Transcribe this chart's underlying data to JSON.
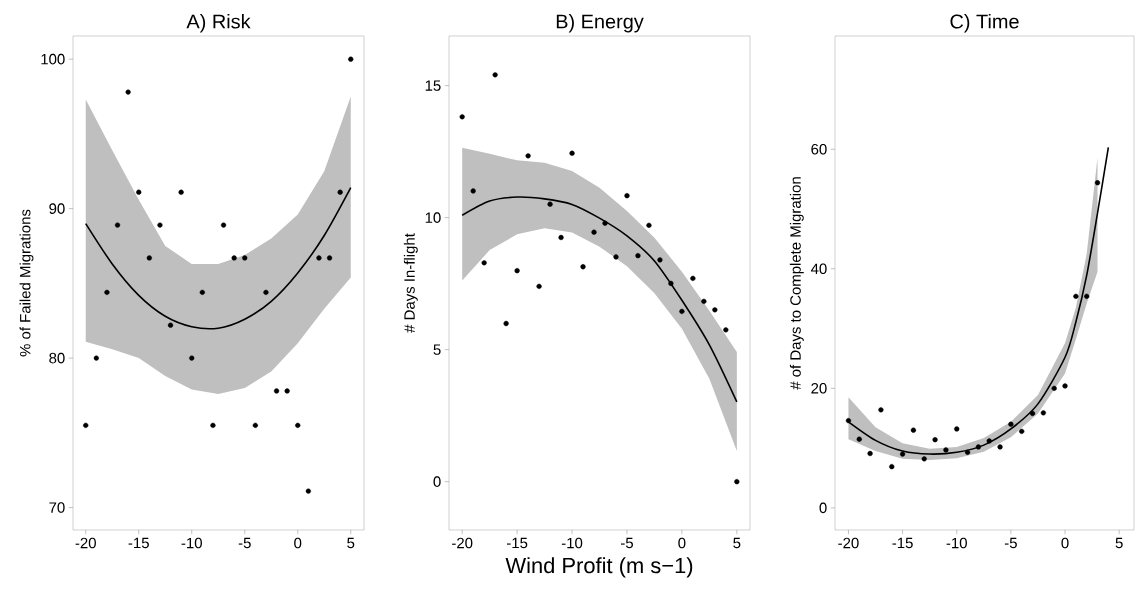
{
  "chart_data": [
    {
      "type": "scatter",
      "title": "A) Risk",
      "ylabel": "% of Failed Migrations",
      "xlim": [
        -21.2,
        6.25
      ],
      "ylim": [
        68.5,
        101.55
      ],
      "xticks": [
        -20,
        -15,
        -10,
        -5,
        0,
        5
      ],
      "yticks": [
        70,
        80,
        90,
        100
      ],
      "grid": false,
      "marker": "circle",
      "series": [
        {
          "color": "#000000",
          "x": [
            -20,
            -19,
            -18,
            -17,
            -16,
            -15,
            -14,
            -13,
            -12,
            -11,
            -10,
            -9,
            -8,
            -7,
            -6,
            -5,
            -4,
            -3,
            -2,
            -1,
            0,
            1,
            2,
            3,
            4,
            5
          ],
          "values": [
            75.5,
            80,
            84.4,
            88.9,
            97.8,
            91.1,
            86.7,
            88.9,
            82.2,
            91.1,
            80,
            84.4,
            75.5,
            88.9,
            86.7,
            86.7,
            75.5,
            84.4,
            77.8,
            77.8,
            75.5,
            71.1,
            86.7,
            86.7,
            91.1,
            100
          ]
        },
        {
          "type": "line",
          "color": "#000000",
          "line_style": "solid",
          "x": [
            -20,
            -17.5,
            -15,
            -12.5,
            -10,
            -7.5,
            -5,
            -2.5,
            0,
            2.5,
            5
          ],
          "marker": "none",
          "values": [
            89.0,
            86.3,
            84.2,
            82.8,
            82.1,
            82.0,
            82.6,
            83.8,
            85.7,
            88.2,
            91.4
          ],
          "upper": [
            97.3,
            93.9,
            90.6,
            87.5,
            86.3,
            86.3,
            86.9,
            88.0,
            89.6,
            92.5,
            97.5
          ],
          "lower": [
            81.1,
            80.6,
            80.0,
            78.8,
            77.9,
            77.6,
            78.0,
            79.1,
            81.0,
            83.3,
            85.4
          ]
        }
      ]
    },
    {
      "type": "scatter",
      "title": "B) Energy",
      "ylabel": "# Days In-flight",
      "xlabel": "Wind Profit (m s−1)",
      "xlim": [
        -21.2,
        6.2
      ],
      "ylim": [
        -1.83,
        16.88
      ],
      "xticks": [
        -20,
        -15,
        -10,
        -5,
        0,
        5
      ],
      "yticks": [
        0,
        5,
        10,
        15
      ],
      "grid": false,
      "marker": "circle",
      "series": [
        {
          "color": "#000000",
          "x": [
            -20,
            -19,
            -18,
            -17,
            -16,
            -15,
            -14,
            -13,
            -12,
            -11,
            -10,
            -9,
            -8,
            -7,
            -6,
            -5,
            -4,
            -3,
            -2,
            -1,
            0,
            1,
            2,
            3,
            4,
            5
          ],
          "values": [
            13.82,
            11.01,
            8.29,
            15.41,
            5.99,
            7.99,
            12.34,
            7.4,
            10.51,
            9.25,
            12.44,
            8.14,
            9.45,
            9.79,
            8.51,
            10.83,
            8.56,
            9.71,
            8.4,
            7.51,
            6.45,
            7.7,
            6.83,
            6.51,
            5.75,
            0
          ]
        },
        {
          "type": "line",
          "color": "#000000",
          "line_style": "solid",
          "x": [
            -20,
            -17.5,
            -15,
            -12.5,
            -10,
            -7.5,
            -5,
            -2.5,
            0,
            2.5,
            5
          ],
          "marker": "none",
          "values": [
            10.09,
            10.63,
            10.78,
            10.71,
            10.5,
            9.98,
            9.31,
            8.36,
            6.87,
            5.18,
            3.02
          ],
          "upper": [
            12.65,
            12.42,
            12.17,
            12.08,
            11.77,
            11.13,
            10.25,
            9.24,
            7.95,
            6.47,
            4.91
          ],
          "lower": [
            7.62,
            8.77,
            9.37,
            9.6,
            9.44,
            8.9,
            8.16,
            7.14,
            5.79,
            3.9,
            1.16
          ]
        }
      ]
    },
    {
      "type": "scatter",
      "title": "C) Time",
      "ylabel": "# of Days to Complete Migration",
      "xlim": [
        -21.24,
        6.37
      ],
      "ylim": [
        -3.7,
        78.95
      ],
      "xticks": [
        -20,
        -15,
        -10,
        -5,
        0,
        5
      ],
      "yticks": [
        0,
        20,
        40,
        60
      ],
      "grid": false,
      "marker": "circle",
      "series": [
        {
          "color": "#000000",
          "x": [
            -20,
            -19,
            -18,
            -17,
            -16,
            -15,
            -14,
            -13,
            -12,
            -11,
            -10,
            -9,
            -8,
            -7,
            -6,
            -5,
            -4,
            -3,
            -2,
            -1,
            0,
            1,
            2,
            3
          ],
          "values": [
            14.6,
            11.5,
            9.1,
            16.4,
            6.9,
            9.0,
            13.0,
            8.2,
            11.4,
            9.7,
            13.2,
            9.3,
            10.2,
            11.2,
            10.2,
            14.0,
            12.8,
            15.8,
            15.9,
            20.0,
            20.4,
            35.4,
            35.4,
            54.4
          ]
        },
        {
          "type": "line",
          "color": "#000000",
          "line_style": "solid",
          "x": [
            -20,
            -17.5,
            -15,
            -12.5,
            -10,
            -7.5,
            -5,
            -2.5,
            0,
            1,
            2,
            3,
            4
          ],
          "marker": "none",
          "values": [
            14.4,
            11.3,
            9.5,
            9.0,
            9.3,
            10.5,
            13.2,
            17.4,
            25.2,
            31.1,
            38.9,
            49.3,
            60.3
          ],
          "upper": [
            18.5,
            13.5,
            10.8,
            9.9,
            10.2,
            11.7,
            14.4,
            18.9,
            27.6,
            33.5,
            42.5,
            58.6,
            null
          ],
          "lower": [
            11.5,
            9.5,
            8.2,
            8.0,
            8.3,
            9.4,
            11.8,
            15.8,
            22.5,
            28.2,
            34.2,
            39.5,
            null
          ]
        }
      ]
    }
  ]
}
